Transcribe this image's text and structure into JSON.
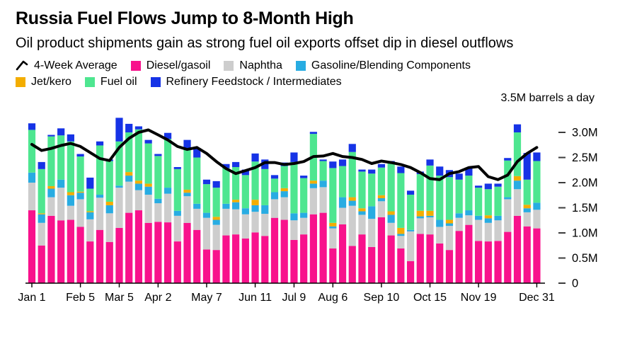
{
  "header": {
    "title": "Russia Fuel Flows Jump to 8-Month High",
    "subtitle": "Oil product shipments gain as strong fuel oil exports offset dip in diesel outflows"
  },
  "chart_data": {
    "type": "bar",
    "stacked": true,
    "title": "Russia Fuel Flows Jump to 8-Month High",
    "unit_label": "3.5M barrels a day",
    "ylabel": "barrels a day",
    "ylim": [
      0,
      3.5
    ],
    "grid": false,
    "legend_position": "top",
    "background": "#ffffff",
    "n_weeks": 53,
    "x_tick_labels": [
      {
        "label": "Jan 1",
        "week": 0
      },
      {
        "label": "Feb 5",
        "week": 5
      },
      {
        "label": "Mar 5",
        "week": 9
      },
      {
        "label": "Apr 2",
        "week": 13
      },
      {
        "label": "May 7",
        "week": 18
      },
      {
        "label": "Jun 11",
        "week": 23
      },
      {
        "label": "Jul 9",
        "week": 27
      },
      {
        "label": "Aug 6",
        "week": 31
      },
      {
        "label": "Sep 10",
        "week": 36
      },
      {
        "label": "Oct 15",
        "week": 41
      },
      {
        "label": "Nov 19",
        "week": 46
      },
      {
        "label": "Dec 31",
        "week": 52
      }
    ],
    "yticks": [
      {
        "value": 3.0,
        "label": "3.0M"
      },
      {
        "value": 2.5,
        "label": "2.5M"
      },
      {
        "value": 2.0,
        "label": "2.0M"
      },
      {
        "value": 1.5,
        "label": "1.5M"
      },
      {
        "value": 1.0,
        "label": "1.0M"
      },
      {
        "value": 0.5,
        "label": "0.5M"
      },
      {
        "value": 0,
        "label": "0"
      }
    ],
    "series": [
      {
        "name": "Diesel/gasoil",
        "color": "#F8128C",
        "values": [
          1.45,
          0.75,
          1.34,
          1.25,
          1.26,
          1.12,
          0.83,
          1.06,
          0.82,
          1.1,
          1.4,
          1.45,
          1.2,
          1.22,
          1.21,
          0.83,
          1.2,
          1.06,
          0.67,
          0.66,
          0.95,
          0.97,
          0.89,
          1.01,
          0.94,
          1.3,
          1.26,
          0.86,
          0.97,
          1.37,
          1.4,
          0.69,
          1.17,
          0.74,
          0.97,
          0.72,
          1.31,
          0.95,
          0.69,
          0.44,
          0.98,
          0.97,
          0.79,
          0.66,
          1.04,
          1.16,
          0.84,
          0.83,
          0.84,
          1.02,
          1.34,
          1.13,
          1.09
        ]
      },
      {
        "name": "Naphtha",
        "color": "#CDCDCD",
        "values": [
          0.55,
          0.45,
          0.37,
          0.65,
          0.28,
          0.55,
          0.44,
          0.64,
          0.57,
          0.8,
          0.62,
          0.4,
          0.56,
          0.37,
          0.57,
          0.51,
          0.53,
          0.42,
          0.63,
          0.5,
          0.53,
          0.5,
          0.48,
          0.41,
          0.44,
          0.37,
          0.45,
          0.39,
          0.33,
          0.52,
          0.51,
          0.4,
          0.33,
          0.8,
          0.39,
          0.56,
          0.32,
          0.25,
          0.25,
          0.59,
          0.31,
          0.34,
          0.33,
          0.48,
          0.26,
          0.19,
          0.42,
          0.37,
          0.41,
          0.65,
          0.53,
          0.28,
          0.37
        ]
      },
      {
        "name": "Gasoline/Blending Components",
        "color": "#28ACE2",
        "values": [
          0.2,
          0.17,
          0.17,
          0.16,
          0.21,
          0.13,
          0.14,
          0.06,
          0.16,
          0.04,
          0.12,
          0.13,
          0.16,
          0.09,
          0.12,
          0.1,
          0.07,
          0.1,
          0.1,
          0.1,
          0.1,
          0.14,
          0.12,
          0.13,
          0.17,
          0.14,
          0.12,
          0.14,
          0.1,
          0.09,
          0.13,
          0.04,
          0.21,
          0.1,
          0.07,
          0.25,
          0.06,
          0.16,
          0.04,
          0.03,
          0.04,
          0.03,
          0.14,
          0.05,
          0.09,
          0.1,
          0.08,
          0.09,
          0.09,
          0.04,
          0.17,
          0.08,
          0.14
        ]
      },
      {
        "name": "Jet/kero",
        "color": "#F3AD00",
        "values": [
          0.0,
          0.02,
          0.05,
          0.0,
          0.06,
          0.02,
          0.02,
          0.0,
          0.07,
          0.0,
          0.07,
          0.06,
          0.06,
          0.0,
          0.0,
          0.0,
          0.06,
          0.0,
          0.0,
          0.06,
          0.0,
          0.05,
          0.0,
          0.11,
          0.0,
          0.0,
          0.06,
          0.0,
          0.0,
          0.06,
          0.0,
          0.07,
          0.0,
          0.07,
          0.06,
          0.0,
          0.06,
          0.07,
          0.12,
          0.0,
          0.11,
          0.1,
          0.0,
          0.07,
          0.0,
          0.0,
          0.0,
          0.06,
          0.0,
          0.0,
          0.09,
          0.07,
          0.0
        ]
      },
      {
        "name": "Fuel oil",
        "color": "#4EE690",
        "values": [
          0.85,
          0.88,
          0.99,
          0.88,
          1.01,
          0.7,
          0.45,
          0.98,
          0.81,
          0.88,
          0.79,
          1.02,
          0.8,
          0.85,
          0.97,
          0.83,
          0.8,
          0.92,
          0.57,
          0.58,
          0.71,
          0.65,
          0.66,
          0.76,
          0.72,
          0.27,
          0.44,
          1.02,
          0.69,
          0.93,
          0.39,
          1.09,
          0.62,
          0.9,
          0.73,
          0.65,
          0.55,
          0.95,
          1.09,
          0.7,
          0.73,
          0.9,
          0.88,
          0.85,
          0.67,
          0.69,
          0.56,
          0.52,
          0.58,
          0.73,
          0.87,
          0.5,
          0.83
        ]
      },
      {
        "name": "Refinery Feedstock / Intermediates",
        "color": "#1633E6",
        "values": [
          0.13,
          0.14,
          0.03,
          0.14,
          0.14,
          0.05,
          0.22,
          0.08,
          0.03,
          0.47,
          0.17,
          0.06,
          0.07,
          0.04,
          0.12,
          0.04,
          0.19,
          0.19,
          0.09,
          0.13,
          0.08,
          0.1,
          0.11,
          0.16,
          0.19,
          0.07,
          0.07,
          0.19,
          0.05,
          0.04,
          0.03,
          0.13,
          0.13,
          0.16,
          0.04,
          0.08,
          0.07,
          0.05,
          0.13,
          0.08,
          0.05,
          0.12,
          0.18,
          0.14,
          0.12,
          0.15,
          0.04,
          0.11,
          0.06,
          0.05,
          0.16,
          0.53,
          0.17
        ]
      }
    ],
    "line": {
      "name": "4-Week Average",
      "color": "#000000",
      "values": [
        2.76,
        2.64,
        2.68,
        2.74,
        2.78,
        2.72,
        2.6,
        2.48,
        2.44,
        2.7,
        2.88,
        3.0,
        3.05,
        2.95,
        2.85,
        2.72,
        2.66,
        2.7,
        2.58,
        2.42,
        2.28,
        2.18,
        2.24,
        2.3,
        2.4,
        2.4,
        2.36,
        2.38,
        2.42,
        2.52,
        2.53,
        2.58,
        2.52,
        2.5,
        2.46,
        2.38,
        2.43,
        2.4,
        2.36,
        2.3,
        2.2,
        2.08,
        2.06,
        2.18,
        2.22,
        2.3,
        2.32,
        2.12,
        2.06,
        2.15,
        2.42,
        2.58,
        2.7
      ]
    }
  }
}
